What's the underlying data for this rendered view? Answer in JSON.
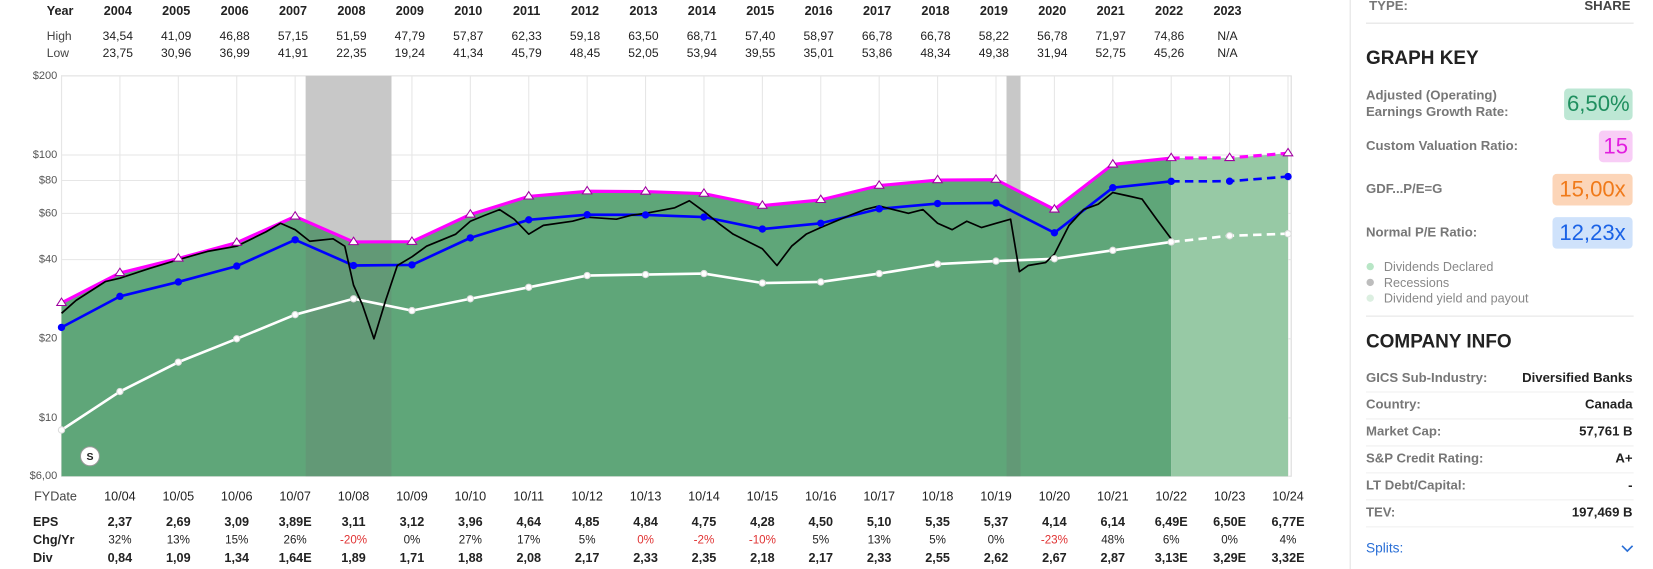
{
  "chart_data": {
    "type": "line",
    "log_y": true,
    "categories": [
      null,
      "10/04",
      "10/05",
      "10/06",
      "10/07",
      "10/08",
      "10/09",
      "10/10",
      "10/11",
      "10/12",
      "10/13",
      "10/14",
      "10/15",
      "10/16",
      "10/17",
      "10/18",
      "10/19",
      "10/20",
      "10/21",
      "10/22",
      "10/23",
      "10/24"
    ],
    "x_label": "FYDate",
    "xlim": [
      2003.75,
      2024.75
    ],
    "ylim": [
      6,
      200
    ],
    "yticks": [
      {
        "value": 6,
        "label": "$6,00"
      },
      {
        "value": 10,
        "label": "$10"
      },
      {
        "value": 20,
        "label": "$20"
      },
      {
        "value": 40,
        "label": "$40"
      },
      {
        "value": 60,
        "label": "$60"
      },
      {
        "value": 80,
        "label": "$80"
      },
      {
        "value": 100,
        "label": "$100"
      },
      {
        "value": 200,
        "label": "$200"
      }
    ],
    "grid": true,
    "estimate_from": "10/22",
    "area_color": "#5fa679",
    "area_estimate_color": "#97c9a5",
    "recession_color": "rgba(110,110,110,0.22)",
    "recessions": [
      [
        2007.93,
        2009.4
      ],
      [
        2019.93,
        2020.17
      ]
    ],
    "series": [
      {
        "color": "#ff00ff",
        "values": [
          27.4,
          35.6,
          40.4,
          46.4,
          58.4,
          46.7,
          46.8,
          59.4,
          69.6,
          72.8,
          72.6,
          71.3,
          64.2,
          67.5,
          76.5,
          80.3,
          80.6,
          62.1,
          92.1,
          97.4,
          97.5,
          101.6
        ]
      },
      {
        "color": "#0000ff",
        "values": [
          22.1,
          29.0,
          32.9,
          37.8,
          47.6,
          38.0,
          38.2,
          48.4,
          56.7,
          59.3,
          59.2,
          58.1,
          52.3,
          55.0,
          62.4,
          65.4,
          65.7,
          50.6,
          75.1,
          79.4,
          79.5,
          82.8
        ]
      },
      {
        "color": "#ffffff",
        "values": [
          9.0,
          12.6,
          16.3,
          20.0,
          24.7,
          28.4,
          25.6,
          28.4,
          31.4,
          34.8,
          35.1,
          35.4,
          32.6,
          32.9,
          35.4,
          38.5,
          39.5,
          40.3,
          43.4,
          46.7,
          49.3,
          50.2
        ]
      },
      {
        "color": "#000000",
        "x": [
          2003.75,
          2004.0,
          2004.5,
          2004.75,
          2005.25,
          2005.75,
          2006.25,
          2006.75,
          2007.25,
          2007.5,
          2007.75,
          2008.0,
          2008.4,
          2008.6,
          2008.75,
          2008.9,
          2009.1,
          2009.3,
          2009.5,
          2009.75,
          2010.0,
          2010.5,
          2010.75,
          2011.0,
          2011.25,
          2011.5,
          2011.75,
          2012.0,
          2012.5,
          2012.75,
          2013.25,
          2013.5,
          2013.75,
          2014.25,
          2014.5,
          2014.75,
          2015.0,
          2015.25,
          2015.75,
          2016.0,
          2016.25,
          2016.5,
          2016.75,
          2017.25,
          2017.5,
          2017.75,
          2018.25,
          2018.5,
          2018.75,
          2019.0,
          2019.25,
          2019.5,
          2019.75,
          2020.0,
          2020.15,
          2020.3,
          2020.6,
          2020.75,
          2021.0,
          2021.25,
          2021.5,
          2021.75,
          2022.0,
          2022.25,
          2022.5,
          2022.75
        ],
        "values": [
          25,
          28,
          33,
          34,
          37,
          40,
          43,
          45,
          51,
          55,
          52,
          47,
          48,
          45,
          32,
          27,
          20,
          28,
          38,
          41,
          45,
          50,
          56,
          59,
          62,
          57,
          50,
          54,
          56,
          58,
          57,
          59,
          60,
          63,
          67,
          61,
          55,
          50,
          44,
          38,
          45,
          50,
          53,
          59,
          62,
          64,
          60,
          62,
          55,
          52,
          56,
          53,
          55,
          57,
          36,
          38,
          39,
          42,
          54,
          62,
          65,
          72,
          70,
          68,
          57,
          48
        ]
      }
    ],
    "split_marker": "S"
  },
  "top_table": {
    "headers": [
      "Year",
      "High",
      "Low"
    ],
    "years": [
      "2004",
      "2005",
      "2006",
      "2007",
      "2008",
      "2009",
      "2010",
      "2011",
      "2012",
      "2013",
      "2014",
      "2015",
      "2016",
      "2017",
      "2018",
      "2019",
      "2020",
      "2021",
      "2022",
      "2023"
    ],
    "high": [
      "34,54",
      "41,09",
      "46,88",
      "57,15",
      "51,59",
      "47,79",
      "57,87",
      "62,33",
      "59,18",
      "63,50",
      "68,71",
      "57,40",
      "58,97",
      "66,78",
      "66,78",
      "58,22",
      "56,78",
      "71,97",
      "74,86",
      "N/A"
    ],
    "low": [
      "23,75",
      "30,96",
      "36,99",
      "41,91",
      "22,35",
      "19,24",
      "41,34",
      "45,79",
      "48,45",
      "52,05",
      "53,94",
      "39,55",
      "35,01",
      "53,86",
      "48,34",
      "49,38",
      "31,94",
      "52,75",
      "45,26",
      "N/A"
    ]
  },
  "bottom_table": {
    "rows": [
      {
        "label": "EPS",
        "cells": [
          "2,37",
          "2,69",
          "3,09",
          "3,89E",
          "3,11",
          "3,12",
          "3,96",
          "4,64",
          "4,85",
          "4,84",
          "4,75",
          "4,28",
          "4,50",
          "5,10",
          "5,35",
          "5,37",
          "4,14",
          "6,14",
          "6,49E",
          "6,50E",
          "6,77E"
        ]
      },
      {
        "label": "Chg/Yr",
        "cells": [
          "32%",
          "13%",
          "15%",
          "26%",
          "-20%",
          "0%",
          "27%",
          "17%",
          "5%",
          "0%",
          "-2%",
          "-10%",
          "5%",
          "13%",
          "5%",
          "0%",
          "-23%",
          "48%",
          "6%",
          "0%",
          "4%"
        ],
        "colors": [
          "#222",
          "#222",
          "#222",
          "#222",
          "#e03333",
          "#222",
          "#222",
          "#222",
          "#222",
          "#e03333",
          "#e03333",
          "#e03333",
          "#222",
          "#222",
          "#222",
          "#222",
          "#e03333",
          "#222",
          "#222",
          "#222",
          "#222"
        ]
      },
      {
        "label": "Div",
        "cells": [
          "0,84",
          "1,09",
          "1,34",
          "1,64E",
          "1,89",
          "1,71",
          "1,88",
          "2,08",
          "2,17",
          "2,33",
          "2,35",
          "2,18",
          "2,17",
          "2,33",
          "2,55",
          "2,62",
          "2,67",
          "2,87",
          "3,13E",
          "3,29E",
          "3,32E"
        ]
      }
    ]
  },
  "side_panel": {
    "type_label": "TYPE:",
    "type_value": "SHARE",
    "graph_key_title": "GRAPH KEY",
    "key_items": [
      {
        "label": [
          "Adjusted (Operating)",
          "Earnings Growth Rate:"
        ],
        "value": "6,50%",
        "bg": "#bde7d4",
        "fg": "#1f8f5f"
      },
      {
        "label": [
          "Custom Valuation Ratio:"
        ],
        "value": "15",
        "bg": "#f8cdf6",
        "fg": "#e21ee0"
      },
      {
        "label": [
          "GDF...P/E=G"
        ],
        "value": "15,00x",
        "bg": "#fcd5b8",
        "fg": "#f07a1a"
      },
      {
        "label": [
          "Normal P/E Ratio:"
        ],
        "value": "12,23x",
        "bg": "#cfe2fb",
        "fg": "#1a62e6"
      }
    ],
    "legend": [
      {
        "label": "Dividends Declared",
        "color": "#b8e6c6"
      },
      {
        "label": "Recessions",
        "color": "#bdbdbd"
      },
      {
        "label": "Dividend yield and payout",
        "color": "#dcefe1"
      }
    ],
    "company_info_title": "COMPANY INFO",
    "company_info": [
      {
        "label": "GICS Sub-Industry:",
        "value": "Diversified Banks"
      },
      {
        "label": "Country:",
        "value": "Canada"
      },
      {
        "label": "Market Cap:",
        "value": "57,761 B"
      },
      {
        "label": "S&P Credit Rating:",
        "value": "A+"
      },
      {
        "label": "LT Debt/Capital:",
        "value": "-"
      },
      {
        "label": "TEV:",
        "value": "197,469 B"
      }
    ],
    "splits": "Splits:"
  }
}
